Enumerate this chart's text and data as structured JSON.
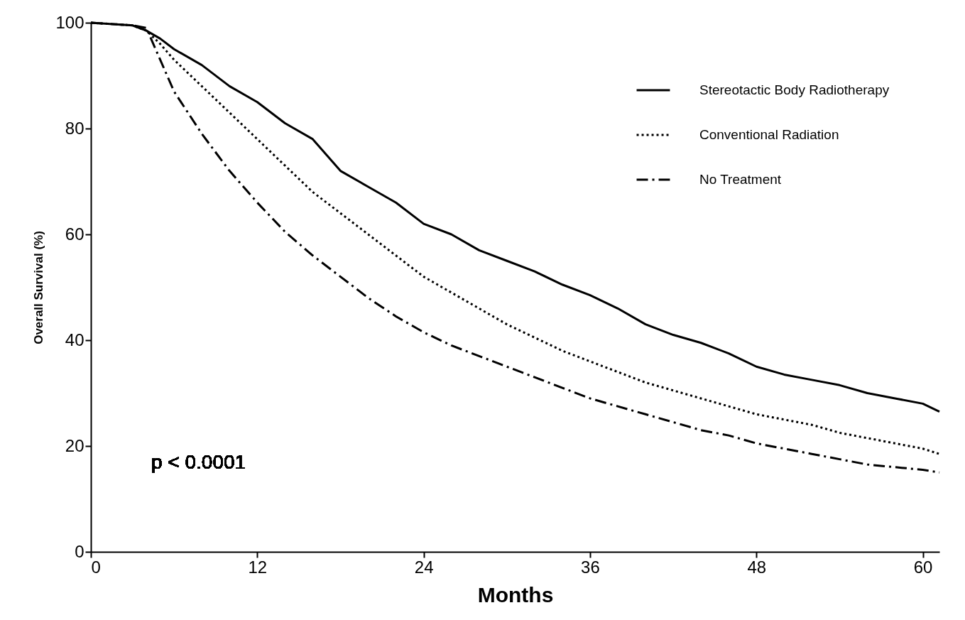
{
  "chart_data": {
    "type": "line",
    "xlabel": "Months",
    "ylabel": "Overall Survival (%)",
    "xlim": [
      0,
      61.2
    ],
    "ylim": [
      0,
      100
    ],
    "xticks": [
      0,
      12,
      24,
      36,
      48,
      60
    ],
    "yticks": [
      0,
      20,
      40,
      60,
      80,
      100
    ],
    "grid": false,
    "legend": "top right",
    "marker": "none",
    "annotations": [
      "p < 0.0001"
    ],
    "x": [
      0,
      3,
      4,
      5,
      6,
      8,
      10,
      12,
      14,
      16,
      18,
      20,
      22,
      24,
      26,
      28,
      30,
      32,
      34,
      36,
      38,
      40,
      42,
      44,
      46,
      48,
      50,
      52,
      54,
      56,
      58,
      60,
      61.2
    ],
    "series": [
      {
        "name": "Stereotactic Body Radiotherapy",
        "color": "#000000",
        "line_style": "solid",
        "values": [
          100,
          99.5,
          98.5,
          97,
          95,
          92,
          88,
          85,
          81,
          78,
          72,
          69,
          66,
          62,
          60,
          57,
          55,
          53,
          50.5,
          48.5,
          46,
          43,
          41,
          39.5,
          37.5,
          35,
          33.5,
          32.5,
          31.5,
          30,
          29,
          28,
          26.5
        ]
      },
      {
        "name": "Conventional Radiation",
        "color": "#000000",
        "line_style": "dotted",
        "values": [
          100,
          99.5,
          98.5,
          96,
          93,
          88,
          83,
          78,
          73,
          68,
          64,
          60,
          56,
          52,
          49,
          46,
          43,
          40.5,
          38,
          36,
          34,
          32,
          30.5,
          29,
          27.5,
          26,
          25,
          24,
          22.5,
          21.5,
          20.5,
          19.5,
          18.5
        ]
      },
      {
        "name": "No Treatment",
        "color": "#000000",
        "line_style": "dashdot",
        "values": [
          100,
          99.5,
          99,
          93,
          87,
          79,
          72,
          66,
          60.5,
          56,
          52,
          48,
          44.5,
          41.5,
          39,
          37,
          35,
          33,
          31,
          29,
          27.5,
          26,
          24.5,
          23,
          22,
          20.5,
          19.5,
          18.5,
          17.5,
          16.5,
          16,
          15.5,
          15
        ]
      }
    ]
  }
}
